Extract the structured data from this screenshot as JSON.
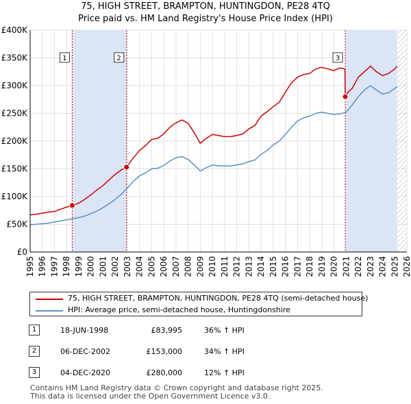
{
  "title_line1": "75, HIGH STREET, BRAMPTON, HUNTINGDON, PE28 4TQ",
  "title_line2": "Price paid vs. HM Land Registry's House Price Index (HPI)",
  "colors": {
    "property": "#cc0000",
    "hpi": "#5b8fc9",
    "shade": "#dbe5f5",
    "grid": "#e0e0e0"
  },
  "legend": {
    "property_label": "75, HIGH STREET, BRAMPTON, HUNTINGDON, PE28 4TQ (semi-detached house)",
    "hpi_label": "HPI: Average price, semi-detached house, Huntingdonshire"
  },
  "transactions": [
    {
      "num": "1",
      "date": "18-JUN-1998",
      "price": "£83,995",
      "hpi": "36% ↑ HPI"
    },
    {
      "num": "2",
      "date": "06-DEC-2002",
      "price": "£153,000",
      "hpi": "34% ↑ HPI"
    },
    {
      "num": "3",
      "date": "04-DEC-2020",
      "price": "£280,000",
      "hpi": "12% ↑ HPI"
    }
  ],
  "footer_line1": "Contains HM Land Registry data © Crown copyright and database right 2025.",
  "footer_line2": "This data is licensed under the Open Government Licence v3.0.",
  "chart_data": {
    "type": "line",
    "title": "Price paid vs. HM Land Registry's House Price Index (HPI)",
    "xlabel": "",
    "ylabel": "",
    "xlim": [
      1995,
      2026
    ],
    "ylim": [
      0,
      400000
    ],
    "grid": true,
    "legend_position": "bottom",
    "yticks": [
      0,
      50000,
      100000,
      150000,
      200000,
      250000,
      300000,
      350000,
      400000
    ],
    "ytick_labels": [
      "£0",
      "£50K",
      "£100K",
      "£150K",
      "£200K",
      "£250K",
      "£300K",
      "£350K",
      "£400K"
    ],
    "xticks": [
      1995,
      1996,
      1997,
      1998,
      1999,
      2000,
      2001,
      2002,
      2003,
      2004,
      2005,
      2006,
      2007,
      2008,
      2009,
      2010,
      2011,
      2012,
      2013,
      2014,
      2015,
      2016,
      2017,
      2018,
      2019,
      2020,
      2021,
      2022,
      2023,
      2024,
      2025,
      2026
    ],
    "shaded_ranges": [
      [
        1998.46,
        2002.93
      ],
      [
        2020.93,
        2025.2
      ]
    ],
    "hatched_after": 2025.2,
    "markers": [
      {
        "label": "1",
        "x": 1998.46,
        "y": 83995
      },
      {
        "label": "2",
        "x": 2002.93,
        "y": 153000
      },
      {
        "label": "3",
        "x": 2020.93,
        "y": 280000
      }
    ],
    "series": [
      {
        "name": "75, HIGH STREET, BRAMPTON, HUNTINGDON, PE28 4TQ (semi-detached house)",
        "color": "#cc0000",
        "x": [
          1995,
          1995.5,
          1996,
          1996.5,
          1997,
          1997.5,
          1998,
          1998.46,
          1999,
          1999.5,
          2000,
          2000.5,
          2001,
          2001.5,
          2002,
          2002.5,
          2002.93,
          2003.5,
          2004,
          2004.5,
          2005,
          2005.5,
          2006,
          2006.5,
          2007,
          2007.5,
          2008,
          2008.5,
          2009,
          2009.5,
          2010,
          2010.5,
          2011,
          2011.5,
          2012,
          2012.5,
          2013,
          2013.5,
          2014,
          2014.5,
          2015,
          2015.5,
          2016,
          2016.5,
          2017,
          2017.5,
          2018,
          2018.5,
          2019,
          2019.5,
          2020,
          2020.5,
          2020.9,
          2020.93,
          2021.2,
          2021.5,
          2022,
          2022.5,
          2023,
          2023.5,
          2024,
          2024.5,
          2025,
          2025.2
        ],
        "y": [
          67000,
          68000,
          70000,
          72000,
          73000,
          77000,
          81000,
          83995,
          88000,
          95000,
          103000,
          112000,
          120000,
          130000,
          140000,
          148000,
          153000,
          170000,
          183000,
          192000,
          203000,
          205000,
          213000,
          225000,
          233000,
          238000,
          232000,
          215000,
          196000,
          205000,
          212000,
          210000,
          208000,
          208000,
          210000,
          213000,
          222000,
          228000,
          245000,
          253000,
          262000,
          270000,
          288000,
          305000,
          315000,
          320000,
          322000,
          330000,
          333000,
          330000,
          327000,
          332000,
          330000,
          280000,
          289000,
          295000,
          315000,
          325000,
          335000,
          325000,
          318000,
          322000,
          330000,
          335000
        ]
      },
      {
        "name": "HPI: Average price, semi-detached house, Huntingdonshire",
        "color": "#5b8fc9",
        "x": [
          1995,
          1995.5,
          1996,
          1996.5,
          1997,
          1997.5,
          1998,
          1998.5,
          1999,
          1999.5,
          2000,
          2000.5,
          2001,
          2001.5,
          2002,
          2002.5,
          2003,
          2003.5,
          2004,
          2004.5,
          2005,
          2005.5,
          2006,
          2006.5,
          2007,
          2007.5,
          2008,
          2008.5,
          2009,
          2009.5,
          2010,
          2010.5,
          2011,
          2011.5,
          2012,
          2012.5,
          2013,
          2013.5,
          2014,
          2014.5,
          2015,
          2015.5,
          2016,
          2016.5,
          2017,
          2017.5,
          2018,
          2018.5,
          2019,
          2019.5,
          2020,
          2020.5,
          2021,
          2021.5,
          2022,
          2022.5,
          2023,
          2023.5,
          2024,
          2024.5,
          2025,
          2025.2
        ],
        "y": [
          49000,
          50000,
          51000,
          52000,
          54000,
          56000,
          58000,
          60000,
          62000,
          65000,
          69000,
          74000,
          80000,
          87000,
          95000,
          104000,
          115000,
          128000,
          137000,
          143000,
          150000,
          151000,
          156000,
          164000,
          170000,
          172000,
          167000,
          157000,
          146000,
          152000,
          157000,
          155000,
          155000,
          155000,
          157000,
          159000,
          163000,
          166000,
          176000,
          183000,
          193000,
          200000,
          212000,
          225000,
          236000,
          242000,
          245000,
          250000,
          252000,
          250000,
          248000,
          249000,
          252000,
          265000,
          280000,
          292000,
          300000,
          292000,
          285000,
          287000,
          295000,
          298000
        ]
      }
    ]
  }
}
